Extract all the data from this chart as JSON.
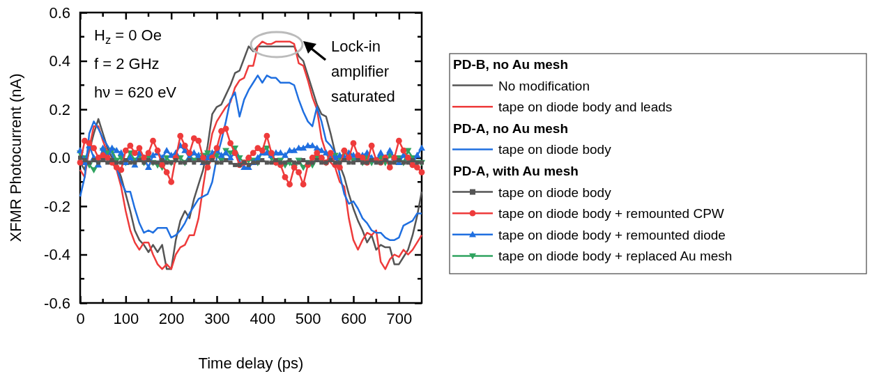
{
  "chart_data": {
    "type": "line",
    "xlabel": "Time delay (ps)",
    "ylabel": "XFMR Photocurrent (nA)",
    "xlim": [
      0,
      750
    ],
    "xticks": [
      0,
      100,
      200,
      300,
      400,
      500,
      600,
      700
    ],
    "ylim": [
      -0.6,
      0.6
    ],
    "yticks": [
      -0.6,
      -0.4,
      -0.2,
      {
        "value": 0,
        "label": "0.0"
      },
      0.2,
      0.4,
      0.6
    ],
    "legend": "right",
    "annotations": [
      "H$_{z}$ = 0 Oe",
      "f = 2 GHz",
      "hν = 620 eV",
      "Lock-in amplifier saturated",
      "PD-B, no Au mesh",
      "PD-A, no Au mesh",
      "PD-A, with Au mesh"
    ],
    "x": [
      0,
      10,
      20,
      30,
      40,
      50,
      60,
      70,
      80,
      90,
      100,
      110,
      120,
      130,
      140,
      150,
      160,
      170,
      180,
      190,
      200,
      210,
      220,
      230,
      240,
      250,
      260,
      270,
      280,
      290,
      300,
      310,
      320,
      330,
      340,
      350,
      360,
      370,
      380,
      390,
      400,
      410,
      420,
      430,
      440,
      450,
      460,
      470,
      480,
      490,
      500,
      510,
      520,
      530,
      540,
      550,
      560,
      570,
      580,
      590,
      600,
      610,
      620,
      630,
      640,
      650,
      660,
      670,
      680,
      690,
      700,
      710,
      720,
      730,
      740,
      750
    ],
    "series": [
      {
        "name": "No modification",
        "color": "#555555",
        "marker": "none",
        "values": [
          -0.02,
          -0.05,
          0.03,
          0.1,
          0.16,
          0.1,
          0.04,
          0.0,
          -0.03,
          -0.08,
          -0.15,
          -0.22,
          -0.3,
          -0.34,
          -0.36,
          -0.39,
          -0.36,
          -0.39,
          -0.36,
          -0.46,
          -0.46,
          -0.34,
          -0.26,
          -0.22,
          -0.25,
          -0.17,
          -0.11,
          -0.05,
          0.05,
          0.18,
          0.21,
          0.22,
          0.26,
          0.3,
          0.35,
          0.36,
          0.41,
          0.46,
          0.44,
          0.46,
          0.46,
          0.46,
          0.46,
          0.46,
          0.46,
          0.46,
          0.46,
          0.46,
          0.42,
          0.4,
          0.34,
          0.28,
          0.22,
          0.18,
          0.17,
          0.1,
          0.02,
          -0.03,
          -0.08,
          -0.15,
          -0.21,
          -0.26,
          -0.3,
          -0.35,
          -0.32,
          -0.38,
          -0.36,
          -0.37,
          -0.37,
          -0.44,
          -0.44,
          -0.41,
          -0.38,
          -0.32,
          -0.24,
          -0.14
        ]
      },
      {
        "name": "tape on diode body and leads",
        "color": "#ee3b3b",
        "marker": "none",
        "values": [
          -0.05,
          -0.08,
          0.04,
          0.13,
          0.13,
          0.07,
          0.02,
          -0.02,
          -0.05,
          -0.12,
          -0.22,
          -0.3,
          -0.35,
          -0.38,
          -0.35,
          -0.35,
          -0.4,
          -0.44,
          -0.46,
          -0.44,
          -0.46,
          -0.4,
          -0.37,
          -0.36,
          -0.32,
          -0.32,
          -0.25,
          -0.12,
          0.0,
          0.1,
          0.15,
          0.18,
          0.21,
          0.23,
          0.29,
          0.32,
          0.33,
          0.38,
          0.38,
          0.46,
          0.48,
          0.47,
          0.47,
          0.48,
          0.48,
          0.48,
          0.48,
          0.47,
          0.39,
          0.38,
          0.32,
          0.25,
          0.2,
          0.08,
          0.02,
          -0.02,
          -0.04,
          -0.1,
          -0.12,
          -0.25,
          -0.34,
          -0.38,
          -0.34,
          -0.31,
          -0.32,
          -0.3,
          -0.43,
          -0.46,
          -0.42,
          -0.4,
          -0.41,
          -0.38,
          -0.4,
          -0.38,
          -0.35,
          -0.32
        ]
      },
      {
        "name": "tape on diode body",
        "color": "#1f6fe0",
        "marker": "none",
        "values": [
          -0.16,
          -0.08,
          0.1,
          0.15,
          0.12,
          0.08,
          0.05,
          0.02,
          -0.04,
          -0.1,
          -0.14,
          -0.14,
          -0.21,
          -0.27,
          -0.31,
          -0.3,
          -0.31,
          -0.29,
          -0.29,
          -0.29,
          -0.33,
          -0.32,
          -0.3,
          -0.27,
          -0.23,
          -0.2,
          -0.17,
          -0.16,
          -0.15,
          -0.1,
          0.0,
          0.07,
          0.15,
          0.24,
          0.27,
          0.17,
          0.24,
          0.28,
          0.31,
          0.34,
          0.31,
          0.34,
          0.33,
          0.33,
          0.31,
          0.31,
          0.31,
          0.3,
          0.24,
          0.19,
          0.15,
          0.13,
          0.21,
          0.15,
          0.07,
          0.05,
          0.02,
          -0.07,
          -0.15,
          -0.19,
          -0.18,
          -0.21,
          -0.25,
          -0.27,
          -0.3,
          -0.31,
          -0.31,
          -0.33,
          -0.34,
          -0.34,
          -0.33,
          -0.28,
          -0.27,
          -0.26,
          -0.23,
          -0.23
        ]
      },
      {
        "name": "tape on diode body",
        "color": "#555555",
        "marker": "square",
        "values": [
          0.0,
          -0.01,
          -0.02,
          -0.01,
          -0.02,
          -0.01,
          -0.02,
          -0.01,
          -0.02,
          -0.02,
          -0.01,
          -0.02,
          -0.02,
          -0.01,
          -0.02,
          -0.01,
          -0.02,
          -0.02,
          -0.01,
          -0.02,
          -0.02,
          -0.01,
          -0.02,
          -0.02,
          -0.01,
          -0.02,
          -0.01,
          -0.02,
          -0.02,
          -0.01,
          -0.02,
          -0.02,
          -0.01,
          -0.02,
          -0.03,
          -0.03,
          -0.02,
          -0.03,
          -0.02,
          -0.02,
          -0.01,
          -0.02,
          -0.02,
          -0.01,
          -0.02,
          -0.02,
          -0.01,
          -0.02,
          -0.02,
          -0.01,
          -0.02,
          -0.02,
          -0.01,
          -0.02,
          -0.02,
          -0.01,
          -0.02,
          -0.02,
          -0.01,
          -0.02,
          -0.02,
          -0.01,
          -0.02,
          -0.02,
          -0.01,
          -0.02,
          -0.02,
          -0.01,
          -0.02,
          -0.02,
          -0.01,
          -0.02,
          -0.02,
          -0.01,
          -0.02,
          -0.02
        ]
      },
      {
        "name": "tape on diode body + remounted CPW",
        "color": "#ee3b3b",
        "marker": "circle",
        "values": [
          -0.02,
          0.07,
          0.06,
          0.04,
          0.0,
          0.01,
          0.0,
          -0.02,
          -0.04,
          -0.05,
          0.03,
          0.05,
          0.02,
          0.04,
          0.0,
          0.02,
          0.07,
          0.03,
          -0.03,
          -0.06,
          -0.1,
          0.0,
          0.09,
          0.05,
          0.02,
          0.08,
          0.07,
          0.0,
          -0.04,
          0.0,
          0.04,
          0.11,
          0.12,
          0.06,
          0.02,
          -0.03,
          -0.02,
          0.0,
          0.02,
          0.04,
          0.03,
          0.09,
          0.02,
          -0.02,
          -0.03,
          -0.08,
          -0.11,
          -0.04,
          -0.06,
          -0.11,
          -0.03,
          0.0,
          0.02,
          0.0,
          -0.02,
          0.02,
          -0.03,
          -0.04,
          0.03,
          0.0,
          0.06,
          0.01,
          0.0,
          -0.02,
          0.05,
          -0.01,
          -0.02,
          0.0,
          -0.04,
          0.0,
          0.07,
          0.03,
          0.0,
          -0.03,
          -0.04,
          -0.06
        ]
      },
      {
        "name": "tape on diode body + remounted diode",
        "color": "#1f6fe0",
        "marker": "triangle",
        "values": [
          0.03,
          -0.02,
          0.05,
          0.0,
          -0.03,
          0.04,
          0.0,
          0.04,
          0.03,
          0.02,
          -0.02,
          0.0,
          -0.03,
          0.02,
          0.0,
          -0.04,
          0.01,
          0.02,
          0.0,
          0.03,
          0.01,
          0.02,
          0.05,
          0.03,
          0.0,
          0.02,
          0.01,
          -0.02,
          0.0,
          0.02,
          0.03,
          0.01,
          0.02,
          0.0,
          0.02,
          -0.02,
          -0.04,
          -0.04,
          -0.02,
          0.0,
          0.02,
          0.02,
          0.01,
          0.02,
          0.02,
          0.01,
          0.03,
          0.03,
          0.04,
          0.04,
          0.05,
          0.05,
          0.04,
          0.03,
          0.02,
          0.01,
          0.0,
          0.01,
          0.0,
          0.02,
          0.01,
          0.0,
          0.01,
          0.02,
          0.0,
          -0.01,
          0.02,
          0.0,
          0.03,
          0.0,
          -0.02,
          0.01,
          0.0,
          -0.02,
          0.01,
          0.04
        ]
      },
      {
        "name": "tape on diode body + replaced Au mesh",
        "color": "#2fa35f",
        "marker": "triangle-down",
        "values": [
          0.02,
          0.0,
          -0.03,
          -0.05,
          -0.02,
          0.03,
          0.02,
          0.03,
          -0.01,
          0.0,
          -0.02,
          0.02,
          -0.01,
          0.01,
          -0.02,
          0.0,
          -0.02,
          -0.03,
          -0.04,
          0.0,
          -0.02,
          -0.01,
          0.0,
          -0.02,
          0.01,
          -0.01,
          0.0,
          0.01,
          0.02,
          0.0,
          0.01,
          -0.01,
          0.03,
          0.02,
          0.04,
          0.0,
          -0.02,
          -0.01,
          -0.01,
          -0.02,
          0.03,
          0.04,
          0.0,
          -0.02,
          -0.01,
          -0.03,
          -0.02,
          -0.04,
          -0.01,
          -0.04,
          -0.02,
          -0.03,
          0.0,
          -0.01,
          -0.02,
          0.0,
          0.01,
          0.0,
          0.02,
          0.01,
          -0.01,
          0.0,
          -0.02,
          0.0,
          -0.02,
          -0.01,
          0.0,
          -0.02,
          0.01,
          -0.01,
          0.0,
          -0.02,
          0.03,
          0.0,
          -0.02,
          -0.02
        ]
      }
    ]
  }
}
